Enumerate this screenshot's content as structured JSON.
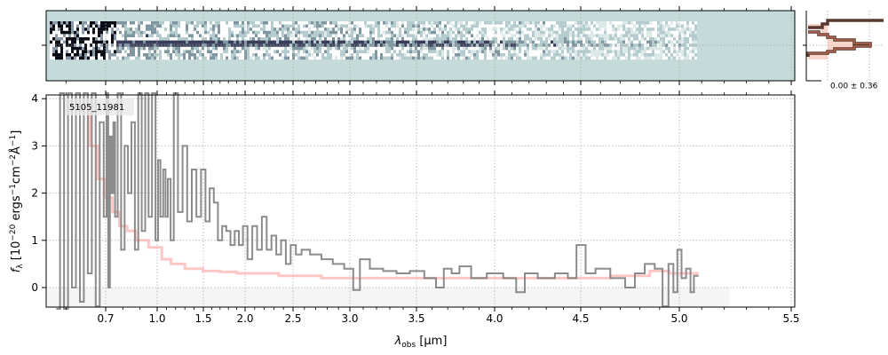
{
  "chart_data": {
    "type": "line",
    "object_label": "5105_11981",
    "xlabel": "λobs [µm]",
    "xlabel_main": "λ",
    "xlabel_sub": "obs",
    "xlabel_unit": " [µm]",
    "ylabel": "fλ [10^-20 ergs^-1 cm^-2 Å^-1]",
    "xlim": [
      0.55,
      5.52
    ],
    "ylim": [
      -0.4,
      4.05
    ],
    "x_ticks": [
      0.7,
      1.0,
      1.5,
      2.0,
      2.5,
      3.0,
      3.5,
      4.0,
      4.5,
      5.0,
      5.5
    ],
    "x_tick_labels": [
      "0.7",
      "1.0",
      "1.5",
      "2.0",
      "2.5",
      "3.0",
      "3.5",
      "4.0",
      "4.5",
      "5.0",
      "5.5"
    ],
    "y_ticks": [
      0,
      1,
      2,
      3,
      4
    ],
    "y_tick_labels": [
      "0",
      "1",
      "2",
      "3",
      "4"
    ],
    "grid": true,
    "shaded_region": {
      "x": [
        0.55,
        5.22
      ],
      "y": [
        -0.4,
        0
      ]
    },
    "series": [
      {
        "name": "spectrum",
        "color": "#808080",
        "step": true,
        "x": [
          0.58,
          0.59,
          0.6,
          0.61,
          0.62,
          0.63,
          0.64,
          0.65,
          0.66,
          0.67,
          0.68,
          0.69,
          0.7,
          0.71,
          0.72,
          0.73,
          0.74,
          0.75,
          0.76,
          0.78,
          0.8,
          0.82,
          0.84,
          0.86,
          0.88,
          0.9,
          0.92,
          0.94,
          0.96,
          0.98,
          1.0,
          1.02,
          1.05,
          1.08,
          1.1,
          1.13,
          1.16,
          1.2,
          1.25,
          1.3,
          1.35,
          1.4,
          1.45,
          1.5,
          1.55,
          1.6,
          1.65,
          1.7,
          1.75,
          1.8,
          1.85,
          1.9,
          1.95,
          2.0,
          2.05,
          2.1,
          2.15,
          2.2,
          2.25,
          2.3,
          2.35,
          2.4,
          2.45,
          2.5,
          2.55,
          2.6,
          2.7,
          2.8,
          2.9,
          3.0,
          3.05,
          3.1,
          3.2,
          3.3,
          3.4,
          3.5,
          3.6,
          3.65,
          3.7,
          3.75,
          3.8,
          3.9,
          4.0,
          4.1,
          4.15,
          4.2,
          4.3,
          4.4,
          4.45,
          4.5,
          4.55,
          4.6,
          4.7,
          4.75,
          4.8,
          4.85,
          4.9,
          4.93,
          4.96,
          4.98,
          5.0,
          5.02,
          5.04,
          5.06,
          5.07,
          5.08
        ],
        "y": [
          -1,
          4.5,
          -0.5,
          4.5,
          0.0,
          4.5,
          -0.3,
          4.5,
          0.3,
          4.5,
          -0.4,
          3.5,
          1.5,
          4.5,
          0.0,
          3.2,
          2.0,
          3.5,
          1.5,
          4.5,
          0.8,
          3.0,
          2.0,
          3.5,
          0.8,
          4.5,
          1.2,
          4.5,
          1.5,
          4.5,
          1.0,
          2.7,
          1.5,
          2.5,
          1.5,
          2.3,
          1.0,
          4.5,
          1.6,
          3.0,
          1.4,
          2.5,
          1.5,
          2.5,
          1.4,
          2.1,
          1.8,
          1.0,
          1.3,
          1.2,
          0.9,
          1.2,
          0.9,
          1.3,
          0.6,
          1.3,
          0.8,
          1.5,
          0.8,
          1.1,
          0.7,
          1.0,
          0.5,
          0.9,
          0.7,
          0.8,
          0.7,
          0.6,
          0.5,
          0.4,
          -0.05,
          0.6,
          0.4,
          0.35,
          0.3,
          0.35,
          0.2,
          0.0,
          0.4,
          0.3,
          0.45,
          0.2,
          0.3,
          0.2,
          -0.1,
          0.3,
          0.2,
          0.3,
          0.2,
          0.9,
          0.3,
          0.4,
          0.2,
          0.0,
          0.3,
          0.5,
          0.4,
          -0.4,
          0.5,
          -0.1,
          0.8,
          0.2,
          0.4,
          -0.1,
          0.25,
          0.25
        ]
      },
      {
        "name": "model",
        "color": "#ffb3b3",
        "step": true,
        "x": [
          0.65,
          0.67,
          0.69,
          0.72,
          0.76,
          0.8,
          0.85,
          0.9,
          1.0,
          1.1,
          1.2,
          1.4,
          1.6,
          1.8,
          2.0,
          2.2,
          2.5,
          3.0,
          3.5,
          4.0,
          4.5,
          4.8,
          4.9,
          5.0,
          5.08
        ],
        "y": [
          3.8,
          3.0,
          2.3,
          1.9,
          1.6,
          1.3,
          1.2,
          1.0,
          0.85,
          0.6,
          0.5,
          0.4,
          0.35,
          0.33,
          0.3,
          0.3,
          0.25,
          0.2,
          0.2,
          0.2,
          0.2,
          0.25,
          0.35,
          0.3,
          0.3
        ]
      }
    ],
    "profile_panel": {
      "label": "0.00 ± 0.36"
    },
    "colors": {
      "image_bg": "#c5dbd9",
      "image_dark": "#1a1a2e",
      "profile_line": "#3a3a3a",
      "profile_fill": "#f6c9bd"
    }
  }
}
